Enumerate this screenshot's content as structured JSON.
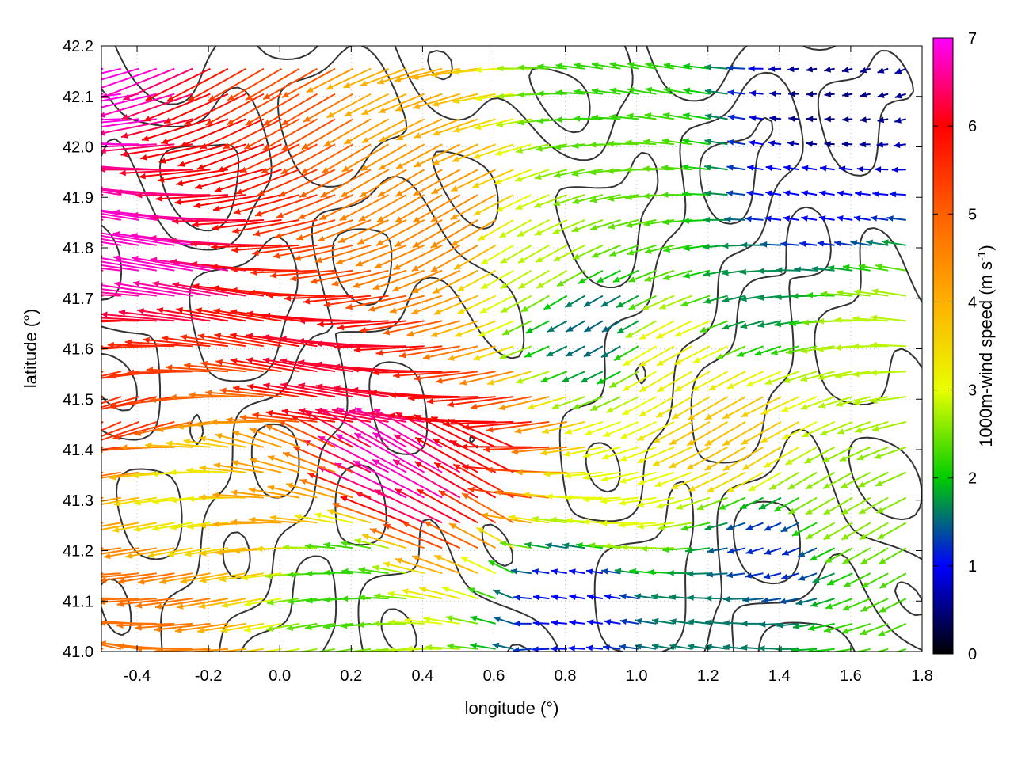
{
  "chart_data": {
    "type": "vector-field",
    "xlabel": "longitude (°)",
    "ylabel": "latitude (°)",
    "xlim": [
      -0.5,
      1.8
    ],
    "ylim": [
      41.0,
      42.2
    ],
    "x_ticks": [
      "-0.4",
      "-0.2",
      "0.0",
      "0.2",
      "0.4",
      "0.6",
      "0.8",
      "1.0",
      "1.2",
      "1.4",
      "1.6",
      "1.8"
    ],
    "y_ticks": [
      "41.0",
      "41.1",
      "41.2",
      "41.3",
      "41.4",
      "41.5",
      "41.6",
      "41.7",
      "41.8",
      "41.9",
      "42.0",
      "42.1",
      "42.2"
    ],
    "grid": true,
    "colorbar": {
      "label_main": "1000m-wind speed (m s",
      "label_sup": "-1",
      "label_end": ")",
      "range": [
        0,
        7
      ],
      "ticks": [
        "0",
        "1",
        "2",
        "3",
        "4",
        "5",
        "6",
        "7"
      ],
      "colors": [
        "#000000",
        "#0000ff",
        "#00cc00",
        "#e8ff00",
        "#ffb000",
        "#ff6000",
        "#ff0000",
        "#ff00ff"
      ]
    },
    "contour_color": "#333333",
    "wind_regions": [
      {
        "lon": -0.45,
        "lat": 42.1,
        "speed": 6.9
      },
      {
        "lon": -0.3,
        "lat": 41.8,
        "speed": 6.8
      },
      {
        "lon": -0.1,
        "lat": 42.0,
        "speed": 6.0
      },
      {
        "lon": 0.1,
        "lat": 42.1,
        "speed": 5.2
      },
      {
        "lon": 0.4,
        "lat": 41.35,
        "speed": 6.8
      },
      {
        "lon": 0.25,
        "lat": 41.55,
        "speed": 6.2
      },
      {
        "lon": 0.6,
        "lat": 41.4,
        "speed": 6.0
      },
      {
        "lon": -0.4,
        "lat": 41.5,
        "speed": 5.5
      },
      {
        "lon": -0.35,
        "lat": 41.1,
        "speed": 4.8
      },
      {
        "lon": 0.5,
        "lat": 41.85,
        "speed": 4.5
      },
      {
        "lon": 0.3,
        "lat": 42.15,
        "speed": 4.0
      },
      {
        "lon": 0.75,
        "lat": 41.8,
        "speed": 2.8
      },
      {
        "lon": 0.9,
        "lat": 41.65,
        "speed": 1.5
      },
      {
        "lon": 0.2,
        "lat": 41.15,
        "speed": 2.2
      },
      {
        "lon": 1.0,
        "lat": 41.95,
        "speed": 2.4
      },
      {
        "lon": 1.3,
        "lat": 41.45,
        "speed": 3.8
      },
      {
        "lon": 1.15,
        "lat": 41.6,
        "speed": 3.2
      },
      {
        "lon": 1.35,
        "lat": 41.7,
        "speed": 1.7
      },
      {
        "lon": 1.55,
        "lat": 42.05,
        "speed": 0.5
      },
      {
        "lon": 1.5,
        "lat": 41.9,
        "speed": 1.0
      },
      {
        "lon": 1.6,
        "lat": 41.3,
        "speed": 2.6
      },
      {
        "lon": 1.4,
        "lat": 41.2,
        "speed": 1.2
      },
      {
        "lon": 1.25,
        "lat": 41.05,
        "speed": 1.6
      },
      {
        "lon": 0.85,
        "lat": 41.1,
        "speed": 1.0
      },
      {
        "lon": 1.0,
        "lat": 41.3,
        "speed": 3.0
      },
      {
        "lon": 0.95,
        "lat": 42.1,
        "speed": 2.2
      },
      {
        "lon": 1.75,
        "lat": 41.05,
        "speed": 2.3
      },
      {
        "lon": 1.7,
        "lat": 41.6,
        "speed": 2.8
      },
      {
        "lon": 0.0,
        "lat": 41.3,
        "speed": 4.2
      },
      {
        "lon": -0.2,
        "lat": 41.3,
        "speed": 3.2
      }
    ]
  }
}
